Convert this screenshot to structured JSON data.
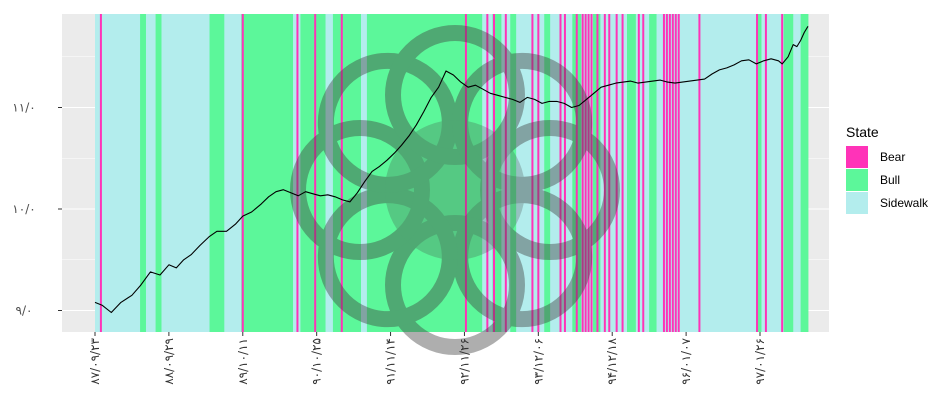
{
  "chart_data": {
    "type": "line",
    "title": "",
    "xlabel": "",
    "ylabel": "",
    "y_tick_labels": [
      "۹/۰",
      "۱۰/۰",
      "۱۱/۰"
    ],
    "y_ticks": [
      9.0,
      10.0,
      11.0
    ],
    "ylim": [
      8.94,
      11.98
    ],
    "x_tick_labels": [
      "۸۷/۰۹/۲۳",
      "۸۸/۰۹/۲۹",
      "۸۹/۱۰/۱۱",
      "۹۰/۱۰/۲۵",
      "۹۱/۱۱/۱۴",
      "۹۲/۱۱/۲۶",
      "۹۳/۱۲/۰۶",
      "۹۴/۱۲/۱۸",
      "۹۶/۰۱/۰۷",
      "۹۷/۰۱/۲۶"
    ],
    "x_ticks": [
      0,
      1,
      2,
      3,
      4,
      5,
      6,
      7,
      8,
      9
    ],
    "xlim": [
      -0.4,
      9.7
    ],
    "grid": true,
    "legend": {
      "title": "State",
      "placement": "right",
      "entries": [
        {
          "label": "Bear",
          "color": "#ff33b8"
        },
        {
          "label": "Bull",
          "color": "#5cf79a"
        },
        {
          "label": "Sidewalk",
          "color": "#b3eded"
        }
      ]
    },
    "state_regions": [
      {
        "state": "Sidewalk",
        "x0": 0.0,
        "x1": 0.61
      },
      {
        "state": "Bull",
        "x0": 0.61,
        "x1": 0.69
      },
      {
        "state": "Sidewalk",
        "x0": 0.69,
        "x1": 0.82
      },
      {
        "state": "Bull",
        "x0": 0.82,
        "x1": 0.9
      },
      {
        "state": "Sidewalk",
        "x0": 0.9,
        "x1": 1.55
      },
      {
        "state": "Bull",
        "x0": 1.55,
        "x1": 1.75
      },
      {
        "state": "Sidewalk",
        "x0": 1.75,
        "x1": 1.98
      },
      {
        "state": "Bull",
        "x0": 1.98,
        "x1": 2.68
      },
      {
        "state": "Sidewalk",
        "x0": 2.68,
        "x1": 2.78
      },
      {
        "state": "Bull",
        "x0": 2.78,
        "x1": 3.12
      },
      {
        "state": "Sidewalk",
        "x0": 3.12,
        "x1": 3.22
      },
      {
        "state": "Bull",
        "x0": 3.22,
        "x1": 3.6
      },
      {
        "state": "Sidewalk",
        "x0": 3.6,
        "x1": 3.68
      },
      {
        "state": "Bull",
        "x0": 3.68,
        "x1": 5.24
      },
      {
        "state": "Sidewalk",
        "x0": 5.24,
        "x1": 5.38
      },
      {
        "state": "Bull",
        "x0": 5.38,
        "x1": 5.5
      },
      {
        "state": "Sidewalk",
        "x0": 5.5,
        "x1": 5.62
      },
      {
        "state": "Bull",
        "x0": 5.62,
        "x1": 5.7
      },
      {
        "state": "Sidewalk",
        "x0": 5.7,
        "x1": 6.08
      },
      {
        "state": "Bull",
        "x0": 6.08,
        "x1": 6.16
      },
      {
        "state": "Sidewalk",
        "x0": 6.16,
        "x1": 6.46
      },
      {
        "state": "Bull",
        "x0": 6.46,
        "x1": 6.58
      },
      {
        "state": "Sidewalk",
        "x0": 6.58,
        "x1": 6.74
      },
      {
        "state": "Bull",
        "x0": 6.74,
        "x1": 6.84
      },
      {
        "state": "Sidewalk",
        "x0": 6.84,
        "x1": 7.2
      },
      {
        "state": "Bull",
        "x0": 7.2,
        "x1": 7.32
      },
      {
        "state": "Sidewalk",
        "x0": 7.32,
        "x1": 7.5
      },
      {
        "state": "Bull",
        "x0": 7.5,
        "x1": 7.6
      },
      {
        "state": "Sidewalk",
        "x0": 7.6,
        "x1": 8.95
      },
      {
        "state": "Bull",
        "x0": 8.95,
        "x1": 9.02
      },
      {
        "state": "Sidewalk",
        "x0": 9.02,
        "x1": 9.32
      },
      {
        "state": "Bull",
        "x0": 9.32,
        "x1": 9.45
      },
      {
        "state": "Sidewalk",
        "x0": 9.45,
        "x1": 9.55
      },
      {
        "state": "Bull",
        "x0": 9.55,
        "x1": 9.65
      }
    ],
    "bear_x": [
      0.08,
      2.0,
      2.74,
      2.98,
      3.34,
      5.02,
      5.31,
      5.4,
      5.56,
      5.92,
      6.0,
      6.3,
      6.36,
      6.52,
      6.6,
      6.64,
      6.68,
      6.72,
      6.8,
      6.9,
      6.96,
      7.06,
      7.14,
      7.36,
      7.42,
      7.7,
      7.74,
      7.78,
      7.82,
      7.86,
      7.9,
      8.18,
      8.96,
      9.08,
      9.3
    ],
    "series": [
      {
        "name": "",
        "x": [
          0.0,
          0.1,
          0.22,
          0.35,
          0.5,
          0.62,
          0.75,
          0.88,
          1.0,
          1.1,
          1.2,
          1.3,
          1.42,
          1.55,
          1.65,
          1.78,
          1.9,
          2.0,
          2.12,
          2.25,
          2.35,
          2.45,
          2.55,
          2.65,
          2.75,
          2.85,
          2.95,
          3.05,
          3.15,
          3.25,
          3.35,
          3.45,
          3.55,
          3.65,
          3.75,
          3.85,
          3.95,
          4.05,
          4.15,
          4.25,
          4.35,
          4.45,
          4.55,
          4.65,
          4.75,
          4.85,
          4.95,
          5.05,
          5.15,
          5.25,
          5.35,
          5.45,
          5.55,
          5.65,
          5.75,
          5.85,
          5.95,
          6.05,
          6.15,
          6.25,
          6.35,
          6.45,
          6.55,
          6.65,
          6.75,
          6.85,
          6.95,
          7.05,
          7.15,
          7.25,
          7.35,
          7.45,
          7.55,
          7.65,
          7.75,
          7.85,
          7.95,
          8.05,
          8.15,
          8.25,
          8.35,
          8.45,
          8.55,
          8.65,
          8.75,
          8.85,
          8.95,
          9.05,
          9.15,
          9.25,
          9.3,
          9.38,
          9.45,
          9.5,
          9.55,
          9.6,
          9.65
        ],
        "y": [
          9.08,
          9.05,
          8.98,
          9.08,
          9.15,
          9.25,
          9.38,
          9.35,
          9.45,
          9.42,
          9.5,
          9.55,
          9.64,
          9.73,
          9.78,
          9.78,
          9.85,
          9.93,
          9.97,
          10.05,
          10.12,
          10.17,
          10.19,
          10.16,
          10.13,
          10.17,
          10.15,
          10.13,
          10.14,
          10.12,
          10.09,
          10.07,
          10.16,
          10.27,
          10.37,
          10.42,
          10.48,
          10.55,
          10.63,
          10.72,
          10.83,
          10.96,
          11.1,
          11.2,
          11.36,
          11.32,
          11.25,
          11.2,
          11.22,
          11.18,
          11.14,
          11.12,
          11.1,
          11.08,
          11.05,
          11.1,
          11.08,
          11.04,
          11.06,
          11.06,
          11.04,
          11.0,
          11.02,
          11.08,
          11.14,
          11.2,
          11.22,
          11.24,
          11.25,
          11.26,
          11.24,
          11.25,
          11.26,
          11.27,
          11.25,
          11.24,
          11.25,
          11.26,
          11.27,
          11.28,
          11.33,
          11.37,
          11.39,
          11.42,
          11.46,
          11.47,
          11.43,
          11.46,
          11.48,
          11.46,
          11.43,
          11.5,
          11.62,
          11.6,
          11.66,
          11.74,
          11.8
        ]
      }
    ]
  }
}
